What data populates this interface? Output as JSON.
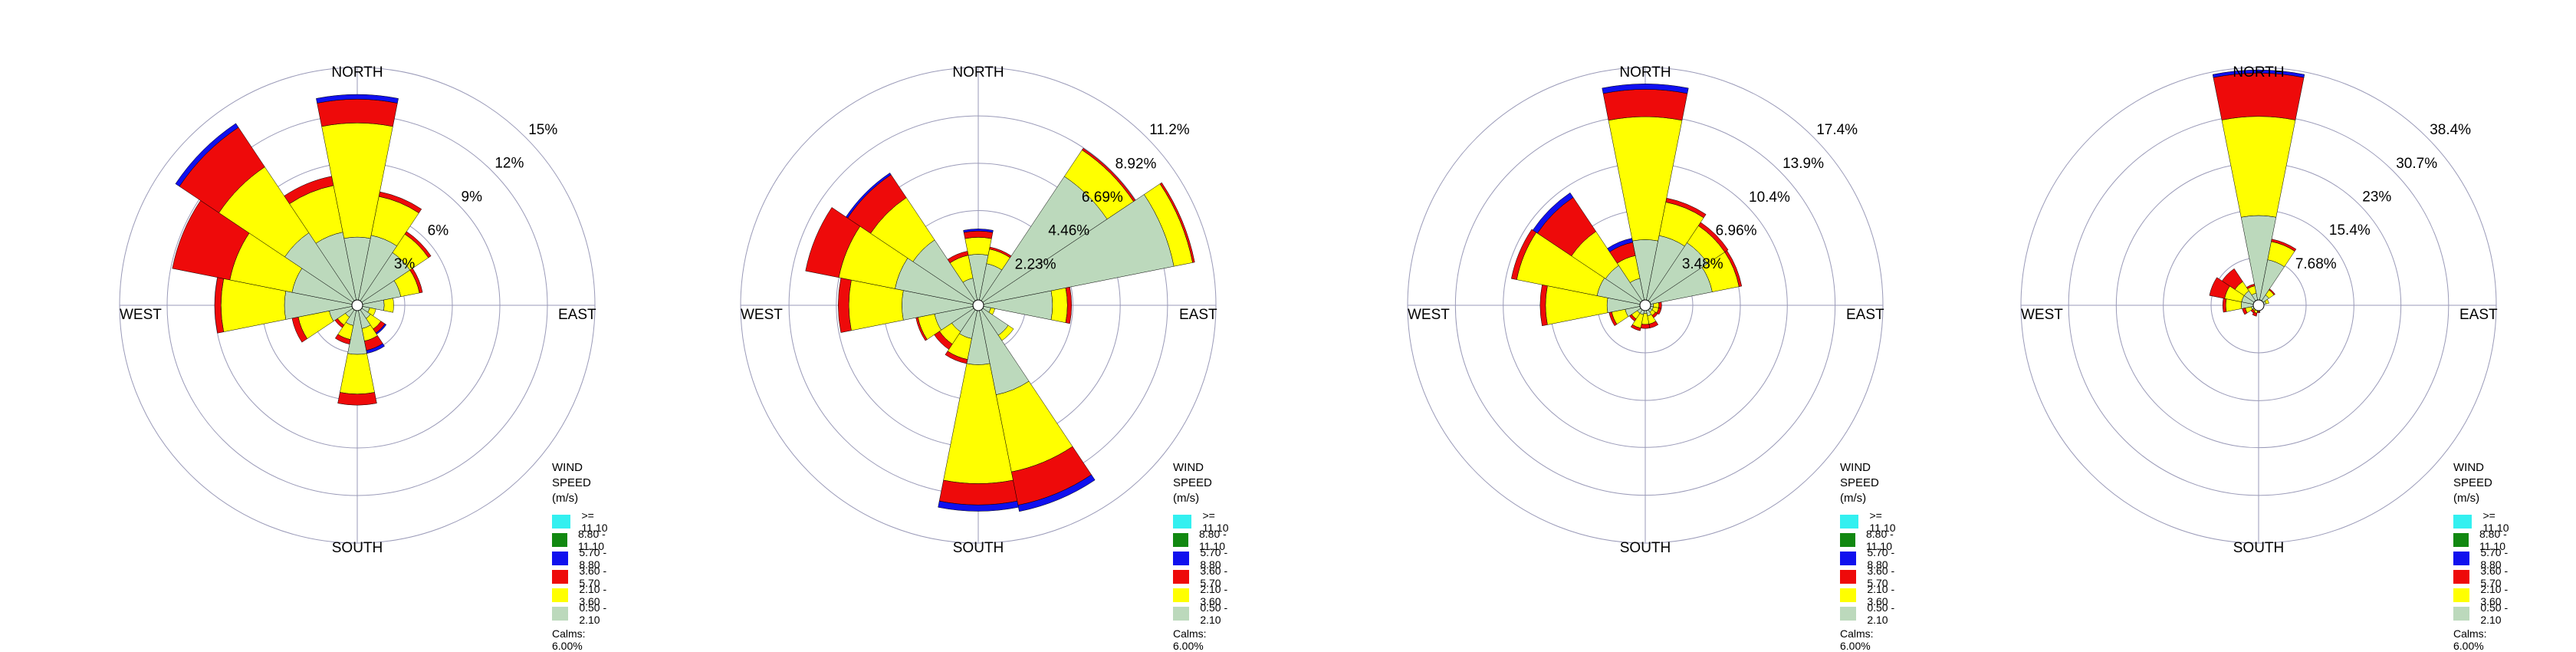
{
  "legend": {
    "title_line1": "WIND SPEED",
    "title_line2": "(m/s)",
    "bins": [
      {
        "label": ">= 11.10",
        "color": "#33f0f0"
      },
      {
        "label": "8.80 - 11.10",
        "color": "#118811"
      },
      {
        "label": "5.70 - 8.80",
        "color": "#1010ee"
      },
      {
        "label": "3.60 - 5.70",
        "color": "#ee0a0a"
      },
      {
        "label": "2.10 - 3.60",
        "color": "#ffff00"
      },
      {
        "label": "0.50 - 2.10",
        "color": "#bcd9bc"
      }
    ],
    "calms": "Calms: 6.00%"
  },
  "directions": {
    "north": "NORTH",
    "east": "EAST",
    "south": "SOUTH",
    "west": "WEST"
  },
  "chart_data": [
    {
      "type": "windrose",
      "rings": [
        3,
        6,
        9,
        12,
        15
      ],
      "ring_labels": [
        "3%",
        "6%",
        "9%",
        "12%",
        "15%"
      ],
      "sectors": [
        {
          "angle": 0,
          "values": [
            0,
            0,
            0.3,
            1.5,
            7.2,
            4.3
          ]
        },
        {
          "angle": 22.5,
          "values": [
            0,
            0,
            0,
            0.3,
            2.5,
            4.5
          ]
        },
        {
          "angle": 45,
          "values": [
            0,
            0,
            0,
            0.2,
            1.4,
            4.0
          ]
        },
        {
          "angle": 67.5,
          "values": [
            0,
            0,
            0,
            0.2,
            1.2,
            2.8
          ]
        },
        {
          "angle": 90,
          "values": [
            0,
            0,
            0,
            0,
            0.6,
            1.7
          ]
        },
        {
          "angle": 112.5,
          "values": [
            0,
            0,
            0,
            0,
            0.4,
            0.8
          ]
        },
        {
          "angle": 135,
          "values": [
            0,
            0,
            0.1,
            0.3,
            0.8,
            1.0
          ]
        },
        {
          "angle": 157.5,
          "values": [
            0,
            0,
            0.2,
            0.6,
            0.8,
            1.5
          ]
        },
        {
          "angle": 180,
          "values": [
            0,
            0,
            0,
            0.7,
            2.5,
            3.1
          ]
        },
        {
          "angle": 202.5,
          "values": [
            0,
            0,
            0,
            0.3,
            0.9,
            1.3
          ]
        },
        {
          "angle": 225,
          "values": [
            0,
            0,
            0,
            0.2,
            0.6,
            0.9
          ]
        },
        {
          "angle": 247.5,
          "values": [
            0,
            0,
            0,
            0.4,
            2.0,
            1.8
          ]
        },
        {
          "angle": 270,
          "values": [
            0,
            0,
            0,
            0.4,
            4.0,
            4.6
          ]
        },
        {
          "angle": 292.5,
          "values": [
            0,
            0,
            0,
            3.7,
            4.0,
            4.2
          ]
        },
        {
          "angle": 315,
          "values": [
            0,
            0,
            0.3,
            3.0,
            5.0,
            5.5
          ]
        },
        {
          "angle": 337.5,
          "values": [
            0,
            0,
            0,
            0.6,
            3.0,
            4.7
          ]
        }
      ]
    },
    {
      "type": "windrose",
      "rings": [
        2.23,
        4.46,
        6.69,
        8.92,
        11.2
      ],
      "ring_labels": [
        "2.23%",
        "4.46%",
        "6.69%",
        "8.92%",
        "11.2%"
      ],
      "sectors": [
        {
          "angle": 0,
          "values": [
            0,
            0,
            0.1,
            0.3,
            0.8,
            2.4
          ]
        },
        {
          "angle": 22.5,
          "values": [
            0,
            0,
            0,
            0.1,
            0.7,
            2.0
          ]
        },
        {
          "angle": 45,
          "values": [
            0,
            0,
            0,
            0.1,
            1.5,
            7.3
          ]
        },
        {
          "angle": 67.5,
          "values": [
            0,
            0,
            0,
            0.1,
            0.9,
            9.4
          ]
        },
        {
          "angle": 90,
          "values": [
            0,
            0,
            0,
            0.2,
            0.7,
            3.5
          ]
        },
        {
          "angle": 112.5,
          "values": [
            0,
            0,
            0,
            0,
            0.2,
            0.6
          ]
        },
        {
          "angle": 135,
          "values": [
            0,
            0,
            0,
            0,
            0.3,
            1.7
          ]
        },
        {
          "angle": 157.5,
          "values": [
            0,
            0,
            0.3,
            1.6,
            3.7,
            4.3
          ]
        },
        {
          "angle": 180,
          "values": [
            0,
            0,
            0.3,
            1.0,
            5.6,
            2.8
          ]
        },
        {
          "angle": 202.5,
          "values": [
            0,
            0,
            0,
            0.2,
            1.0,
            1.6
          ]
        },
        {
          "angle": 225,
          "values": [
            0,
            0,
            0,
            0.3,
            0.7,
            1.5
          ]
        },
        {
          "angle": 247.5,
          "values": [
            0,
            0,
            0,
            0.1,
            0.8,
            2.1
          ]
        },
        {
          "angle": 270,
          "values": [
            0,
            0,
            0,
            0.5,
            2.5,
            3.6
          ]
        },
        {
          "angle": 292.5,
          "values": [
            0,
            0,
            0,
            1.6,
            2.7,
            4.0
          ]
        },
        {
          "angle": 315,
          "values": [
            0,
            0,
            0.1,
            1.3,
            2.4,
            3.7
          ]
        },
        {
          "angle": 337.5,
          "values": [
            0,
            0,
            0,
            0.2,
            1.1,
            1.3
          ]
        }
      ]
    },
    {
      "type": "windrose",
      "rings": [
        3.48,
        6.96,
        10.4,
        13.9,
        17.4
      ],
      "ring_labels": [
        "3.48%",
        "6.96%",
        "10.4%",
        "13.9%",
        "17.4%"
      ],
      "sectors": [
        {
          "angle": 0,
          "values": [
            0,
            0,
            0.4,
            2.0,
            9.0,
            4.8
          ]
        },
        {
          "angle": 22.5,
          "values": [
            0,
            0,
            0,
            0.3,
            2.5,
            5.2
          ]
        },
        {
          "angle": 45,
          "values": [
            0,
            0,
            0,
            0.3,
            1.5,
            5.5
          ]
        },
        {
          "angle": 67.5,
          "values": [
            0,
            0,
            0,
            0.2,
            2.0,
            5.0
          ]
        },
        {
          "angle": 90,
          "values": [
            0,
            0,
            0,
            0.2,
            0.4,
            0.6
          ]
        },
        {
          "angle": 112.5,
          "values": [
            0,
            0,
            0,
            0.2,
            0.4,
            0.6
          ]
        },
        {
          "angle": 135,
          "values": [
            0,
            0,
            0,
            0.2,
            0.3,
            0.6
          ]
        },
        {
          "angle": 157.5,
          "values": [
            0,
            0,
            0,
            0.3,
            0.6,
            0.8
          ]
        },
        {
          "angle": 180,
          "values": [
            0,
            0,
            0,
            0.3,
            0.8,
            0.6
          ]
        },
        {
          "angle": 202.5,
          "values": [
            0,
            0,
            0,
            0.2,
            1.0,
            0.7
          ]
        },
        {
          "angle": 225,
          "values": [
            0,
            0,
            0,
            0.2,
            0.5,
            0.7
          ]
        },
        {
          "angle": 247.5,
          "values": [
            0,
            0,
            0,
            0.2,
            1.0,
            1.5
          ]
        },
        {
          "angle": 270,
          "values": [
            0,
            0,
            0,
            0.4,
            4.5,
            2.8
          ]
        },
        {
          "angle": 292.5,
          "values": [
            0,
            0,
            0,
            0.4,
            6.0,
            3.6
          ]
        },
        {
          "angle": 315,
          "values": [
            0,
            0,
            0.4,
            3.0,
            3.0,
            3.5
          ]
        },
        {
          "angle": 337.5,
          "values": [
            0,
            0,
            0.3,
            1.0,
            1.7,
            2.0
          ]
        }
      ]
    },
    {
      "type": "windrose",
      "rings": [
        7.68,
        15.4,
        23,
        30.7,
        38.4
      ],
      "ring_labels": [
        "7.68%",
        "15.4%",
        "23%",
        "30.7%",
        "38.4%"
      ],
      "sectors": [
        {
          "angle": 0,
          "values": [
            0,
            0,
            0.5,
            7.0,
            16.0,
            14.5
          ]
        },
        {
          "angle": 22.5,
          "values": [
            0,
            0,
            0,
            0.4,
            3.0,
            7.5
          ]
        },
        {
          "angle": 45,
          "values": [
            0,
            0,
            0,
            0.2,
            1.0,
            2.0
          ]
        },
        {
          "angle": 67.5,
          "values": [
            0,
            0,
            0,
            0,
            0.5,
            1.2
          ]
        },
        {
          "angle": 90,
          "values": [
            0,
            0,
            0,
            0,
            0.2,
            0.5
          ]
        },
        {
          "angle": 112.5,
          "values": [
            0,
            0,
            0,
            0,
            0.2,
            0.4
          ]
        },
        {
          "angle": 135,
          "values": [
            0,
            0,
            0,
            0,
            0.2,
            0.4
          ]
        },
        {
          "angle": 157.5,
          "values": [
            0,
            0,
            0,
            0,
            0.3,
            0.5
          ]
        },
        {
          "angle": 180,
          "values": [
            0,
            0,
            0,
            0.2,
            0.5,
            0.5
          ]
        },
        {
          "angle": 202.5,
          "values": [
            0,
            0,
            0,
            0.5,
            0.6,
            0.7
          ]
        },
        {
          "angle": 225,
          "values": [
            0,
            0,
            0,
            0.4,
            0.5,
            0.6
          ]
        },
        {
          "angle": 247.5,
          "values": [
            0,
            0,
            0,
            0.5,
            1.0,
            1.2
          ]
        },
        {
          "angle": 270,
          "values": [
            0,
            0,
            0,
            0.5,
            2.5,
            2.8
          ]
        },
        {
          "angle": 292.5,
          "values": [
            0,
            0,
            0,
            2.5,
            2.8,
            2.8
          ]
        },
        {
          "angle": 315,
          "values": [
            0,
            0,
            0,
            2.5,
            1.8,
            2.8
          ]
        },
        {
          "angle": 337.5,
          "values": [
            0,
            0,
            0,
            0.3,
            1.2,
            2.0
          ]
        }
      ]
    }
  ]
}
